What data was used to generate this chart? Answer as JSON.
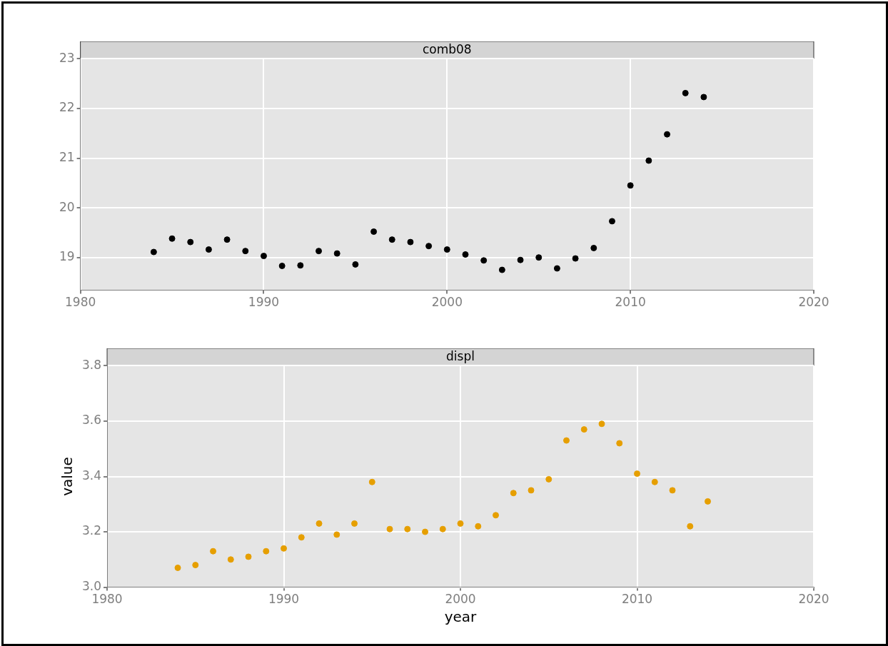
{
  "chart_data": [
    {
      "type": "scatter",
      "title": "comb08",
      "x": [
        1984,
        1985,
        1986,
        1987,
        1988,
        1989,
        1990,
        1991,
        1992,
        1993,
        1994,
        1995,
        1996,
        1997,
        1998,
        1999,
        2000,
        2001,
        2002,
        2003,
        2004,
        2005,
        2006,
        2007,
        2008,
        2009,
        2010,
        2011,
        2012,
        2013,
        2014
      ],
      "series": [
        {
          "color": "#000000",
          "values": [
            19.11,
            19.38,
            19.31,
            19.16,
            19.36,
            19.13,
            19.03,
            18.83,
            18.84,
            19.13,
            19.08,
            18.86,
            19.52,
            19.36,
            19.31,
            19.23,
            19.16,
            19.06,
            18.94,
            18.75,
            18.95,
            19.0,
            18.78,
            18.98,
            19.19,
            19.73,
            20.45,
            20.95,
            21.48,
            22.31,
            22.23
          ]
        }
      ],
      "xlim": [
        1980,
        2020
      ],
      "xticks": [
        1980,
        1990,
        2000,
        2010,
        2020
      ],
      "ylim": [
        18.34,
        23
      ],
      "yticks": [
        19,
        20,
        21,
        22,
        23
      ],
      "grid": true,
      "marker": "circle",
      "legend": false
    },
    {
      "type": "scatter",
      "title": "displ",
      "xlabel": "year",
      "ylabel": "value",
      "x": [
        1984,
        1985,
        1986,
        1987,
        1988,
        1989,
        1990,
        1991,
        1992,
        1993,
        1994,
        1995,
        1996,
        1997,
        1998,
        1999,
        2000,
        2001,
        2002,
        2003,
        2004,
        2005,
        2006,
        2007,
        2008,
        2009,
        2010,
        2011,
        2012,
        2013,
        2014
      ],
      "series": [
        {
          "color": "#e69f00",
          "values": [
            3.07,
            3.08,
            3.13,
            3.1,
            3.11,
            3.13,
            3.14,
            3.18,
            3.23,
            3.19,
            3.23,
            3.38,
            3.21,
            3.21,
            3.2,
            3.21,
            3.23,
            3.22,
            3.26,
            3.34,
            3.35,
            3.39,
            3.53,
            3.57,
            3.59,
            3.52,
            3.41,
            3.38,
            3.35,
            3.22,
            3.31
          ]
        }
      ],
      "xlim": [
        1980,
        2020
      ],
      "xticks": [
        1980,
        1990,
        2000,
        2010,
        2020
      ],
      "ylim": [
        3.0,
        3.8
      ],
      "yticks": [
        {
          "value": 3.0,
          "label": "3.0"
        },
        {
          "value": 3.2,
          "label": "3.2"
        },
        {
          "value": 3.4,
          "label": "3.4"
        },
        {
          "value": 3.6,
          "label": "3.6"
        },
        {
          "value": 3.8,
          "label": "3.8"
        }
      ],
      "grid": true,
      "marker": "circle",
      "legend": false
    }
  ]
}
